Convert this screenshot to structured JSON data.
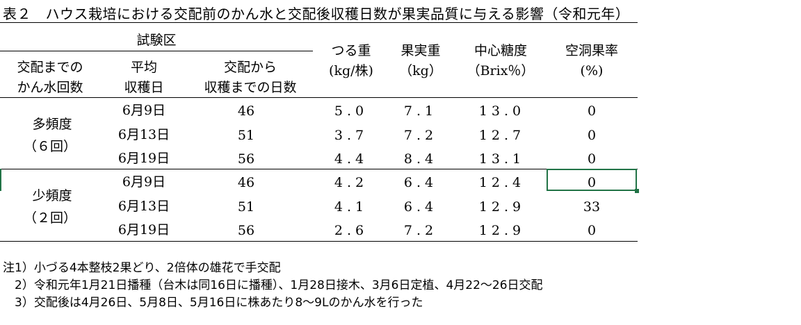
{
  "title": "表２　ハウス栽培における交配前のかん水と交配後収穫日数が果実品質に与える影響（令和元年）",
  "header": {
    "group": "試験区",
    "col1": [
      "交配までの",
      "かん水回数"
    ],
    "col2": [
      "平均",
      "収穫日"
    ],
    "col3": [
      "交配から",
      "収穫までの日数"
    ],
    "col4": [
      "つる重",
      "(kg/株)"
    ],
    "col5": [
      "果実重",
      "（kg）"
    ],
    "col6": [
      "中心糖度",
      "（Brix％）"
    ],
    "col7": [
      "空洞果率",
      "(%)"
    ]
  },
  "groups": [
    {
      "label": [
        "多頻度",
        "（６回）"
      ],
      "rows": [
        {
          "date": "6月9日",
          "days": "46",
          "vine": "5.0",
          "fruit": "7.1",
          "brix": "13.0",
          "hollow": "0"
        },
        {
          "date": "6月13日",
          "days": "51",
          "vine": "3.7",
          "fruit": "7.2",
          "brix": "12.7",
          "hollow": "0"
        },
        {
          "date": "6月19日",
          "days": "56",
          "vine": "4.4",
          "fruit": "8.4",
          "brix": "13.1",
          "hollow": "0"
        }
      ]
    },
    {
      "label": [
        "少頻度",
        "（２回）"
      ],
      "rows": [
        {
          "date": "6月9日",
          "days": "46",
          "vine": "4.2",
          "fruit": "6.4",
          "brix": "12.4",
          "hollow": "0"
        },
        {
          "date": "6月13日",
          "days": "51",
          "vine": "4.1",
          "fruit": "6.4",
          "brix": "12.9",
          "hollow": "33"
        },
        {
          "date": "6月19日",
          "days": "56",
          "vine": "2.6",
          "fruit": "7.2",
          "brix": "12.9",
          "hollow": "0"
        }
      ]
    }
  ],
  "notes": [
    "注1）小づる4本整枝2果どり、2倍体の雄花で手交配",
    "　2）令和元年1月21日播種（台木は同16日に播種）、1月28日接木、3月6日定植、4月22～26日交配",
    "　3）交配後は4月26日、5月8日、5月16日に株あたり8～9Lのかん水を行った"
  ]
}
